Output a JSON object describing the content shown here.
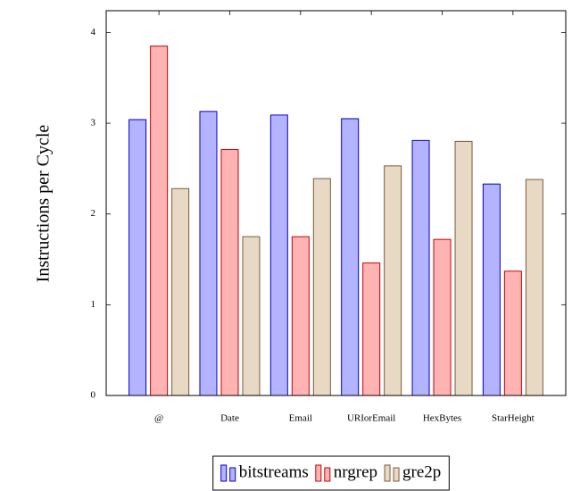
{
  "chart_data": {
    "type": "bar",
    "y_label": "Instructions per Cycle",
    "categories": [
      "@",
      "Date",
      "Email",
      "URIorEmail",
      "HexBytes",
      "StarHeight"
    ],
    "series": [
      {
        "name": "bitstreams",
        "color": "#b3b3ff",
        "edge": "#0000cc",
        "values": [
          3.04,
          3.13,
          3.09,
          3.05,
          2.81,
          2.33
        ]
      },
      {
        "name": "nrgrep",
        "color": "#ffb3b3",
        "edge": "#cc0000",
        "values": [
          3.85,
          2.71,
          1.75,
          1.46,
          1.72,
          1.37
        ]
      },
      {
        "name": "gre2p",
        "color": "#e8d9c4",
        "edge": "#7a5a3a",
        "values": [
          2.28,
          1.75,
          2.39,
          2.53,
          2.8,
          2.38
        ]
      }
    ],
    "ylim": [
      0,
      4.24
    ],
    "yticks": [
      0,
      1,
      2,
      3,
      4
    ],
    "legend": "bottom"
  }
}
